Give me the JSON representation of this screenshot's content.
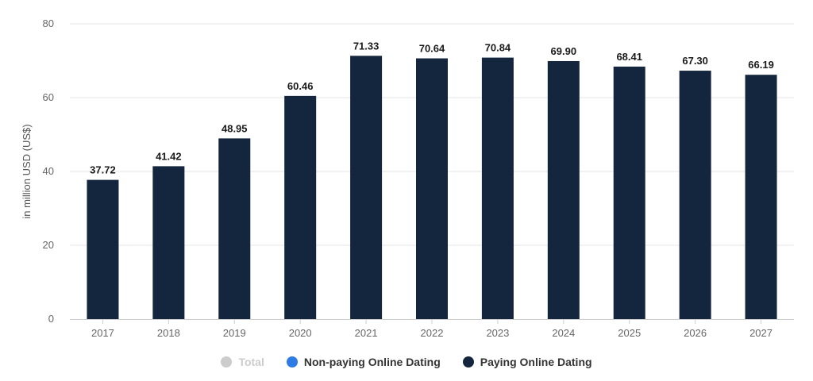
{
  "chart_data": {
    "type": "bar",
    "categories": [
      "2017",
      "2018",
      "2019",
      "2020",
      "2021",
      "2022",
      "2023",
      "2024",
      "2025",
      "2026",
      "2027"
    ],
    "series": [
      {
        "name": "Paying Online Dating",
        "values": [
          37.72,
          41.42,
          48.95,
          60.46,
          71.33,
          70.64,
          70.84,
          69.9,
          68.41,
          67.3,
          66.19
        ],
        "value_labels": [
          "37.72",
          "41.42",
          "48.95",
          "60.46",
          "71.33",
          "70.64",
          "70.84",
          "69.90",
          "68.41",
          "67.30",
          "66.19"
        ],
        "color": "#13263d"
      }
    ],
    "ylabel": "in million USD (US$)",
    "ylim": [
      0,
      80
    ],
    "yticks": [
      "0",
      "20",
      "40",
      "60",
      "80"
    ],
    "grid": true,
    "legend_position": "bottom",
    "legend": [
      {
        "label": "Total",
        "color": "#cccccc",
        "active": false
      },
      {
        "label": "Non-paying Online Dating",
        "color": "#2d7be5",
        "active": true
      },
      {
        "label": "Paying Online Dating",
        "color": "#13263d",
        "active": true
      }
    ]
  }
}
